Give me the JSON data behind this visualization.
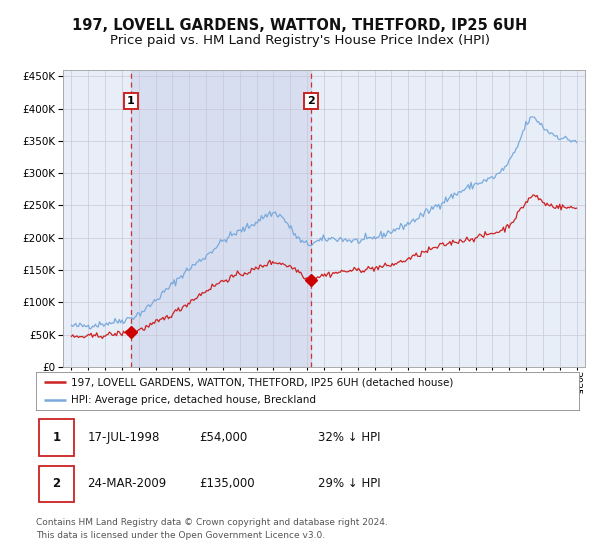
{
  "title": "197, LOVELL GARDENS, WATTON, THETFORD, IP25 6UH",
  "subtitle": "Price paid vs. HM Land Registry's House Price Index (HPI)",
  "title_fontsize": 10.5,
  "subtitle_fontsize": 9.5,
  "background_color": "#ffffff",
  "plot_bg_color": "#e8eef8",
  "grid_color": "#c8c8d8",
  "hpi_color": "#7aaadd",
  "price_color": "#cc2222",
  "marker_color": "#cc0000",
  "legend_label_price": "197, LOVELL GARDENS, WATTON, THETFORD, IP25 6UH (detached house)",
  "legend_label_hpi": "HPI: Average price, detached house, Breckland",
  "sale1_date": 1998.54,
  "sale1_price": 54000,
  "sale1_label": "1",
  "sale2_date": 2009.23,
  "sale2_price": 135000,
  "sale2_label": "2",
  "table_row1": [
    "1",
    "17-JUL-1998",
    "£54,000",
    "32% ↓ HPI"
  ],
  "table_row2": [
    "2",
    "24-MAR-2009",
    "£135,000",
    "29% ↓ HPI"
  ],
  "footer": "Contains HM Land Registry data © Crown copyright and database right 2024.\nThis data is licensed under the Open Government Licence v3.0.",
  "ylim": [
    0,
    460000
  ],
  "xlim_start": 1994.5,
  "xlim_end": 2025.5
}
